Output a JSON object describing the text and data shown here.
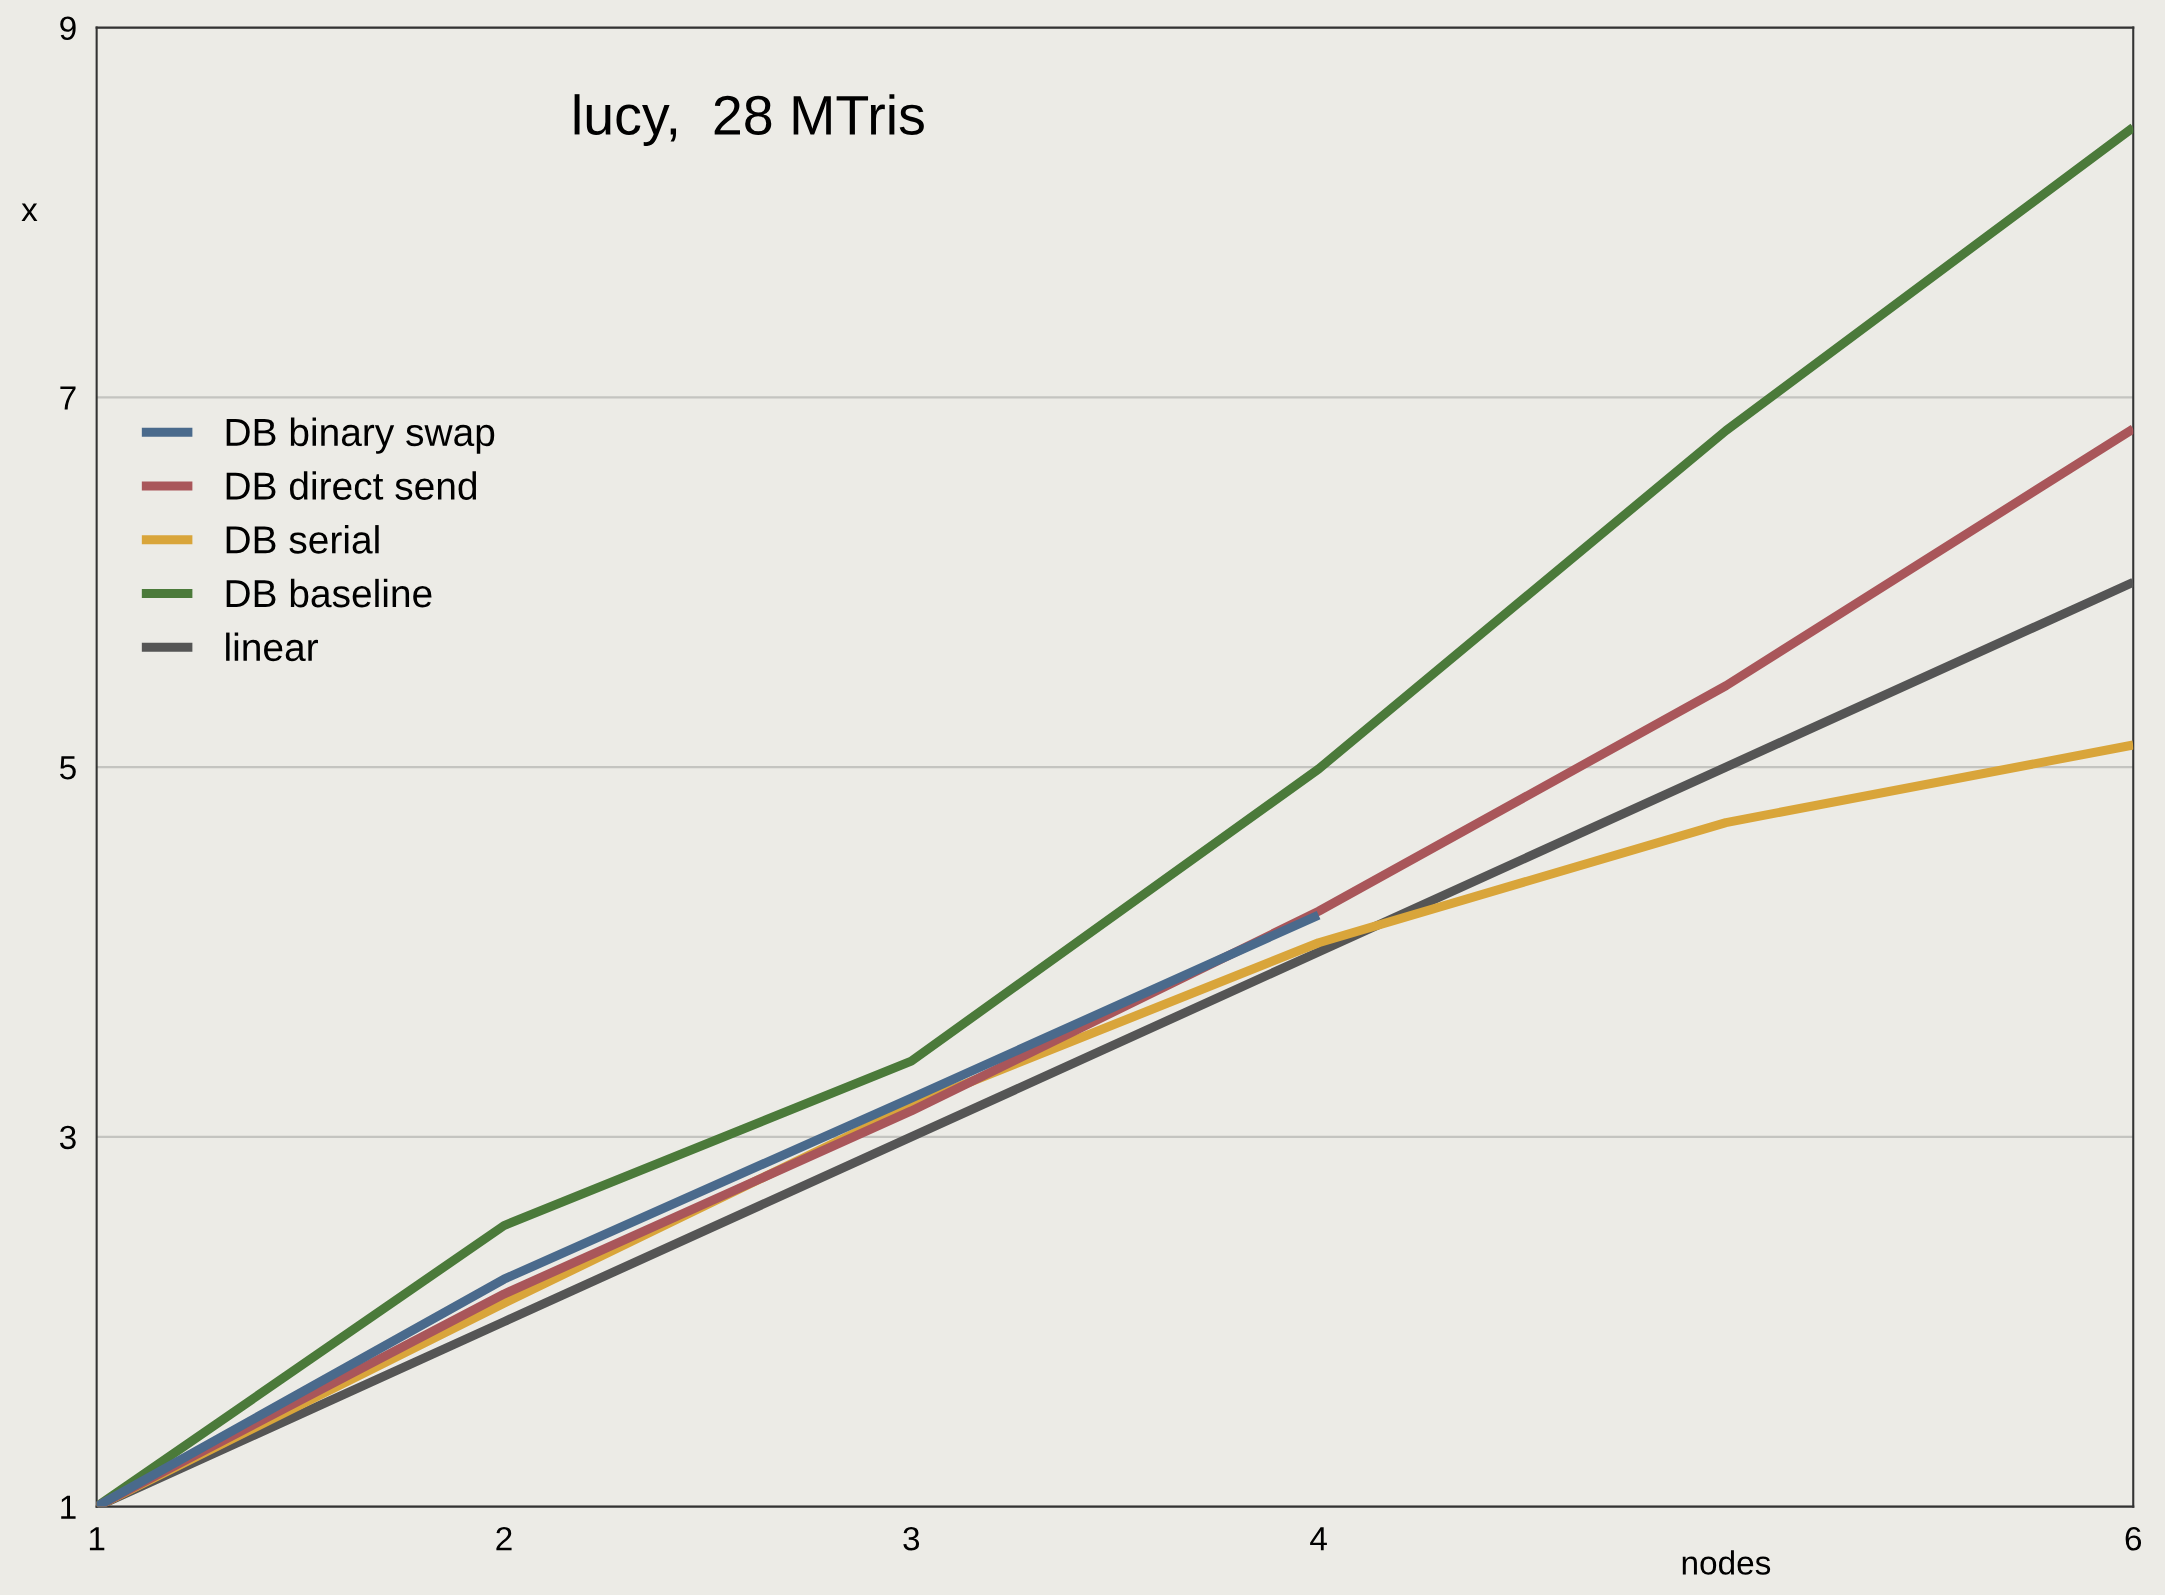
{
  "chart_data": {
    "type": "line",
    "title": "lucy,  28 MTris",
    "xlabel": "nodes",
    "ylabel": "x",
    "x": [
      1,
      2,
      3,
      4,
      5,
      6
    ],
    "series": [
      {
        "name": "DB binary swap",
        "color": "#4a6a8c",
        "values": [
          1,
          2.23,
          3.21,
          4.2,
          null,
          null
        ]
      },
      {
        "name": "DB direct send",
        "color": "#a9565a",
        "values": [
          1,
          2.15,
          3.14,
          4.22,
          5.44,
          6.83
        ]
      },
      {
        "name": "DB serial",
        "color": "#d9a53a",
        "values": [
          1,
          2.1,
          3.17,
          4.05,
          4.7,
          5.12
        ]
      },
      {
        "name": "DB baseline",
        "color": "#4b7a3a",
        "values": [
          1,
          2.52,
          3.41,
          4.99,
          6.82,
          8.46
        ]
      },
      {
        "name": "linear",
        "color": "#555555",
        "values": [
          1,
          2,
          3,
          4,
          5,
          6
        ]
      }
    ],
    "xlim": [
      1,
      6
    ],
    "xticks": [
      1,
      2,
      3,
      4,
      6
    ],
    "ylim": [
      1,
      9
    ],
    "yticks": [
      1,
      3,
      5,
      7,
      9
    ],
    "grid": "y",
    "legend": "top left",
    "line_style": "solid",
    "marker": "none"
  }
}
